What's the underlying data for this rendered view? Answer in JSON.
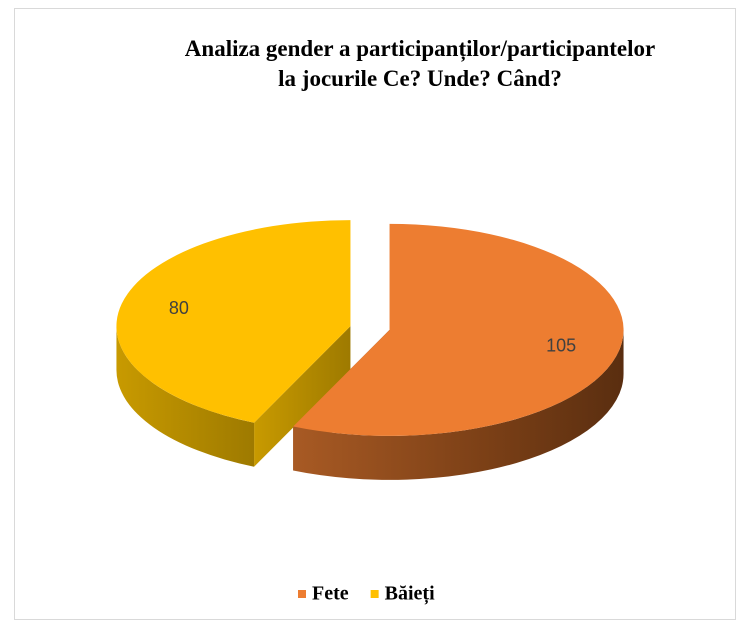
{
  "chart_data": {
    "type": "pie3d",
    "title": "Analiza gender a participanților/participantelor la jocurile Ce? Unde? Când?",
    "categories": [
      "Fete",
      "Băieți"
    ],
    "values": [
      105,
      80
    ],
    "colors": [
      "#ED7D31",
      "#FFC000"
    ],
    "legend": "bottom"
  }
}
